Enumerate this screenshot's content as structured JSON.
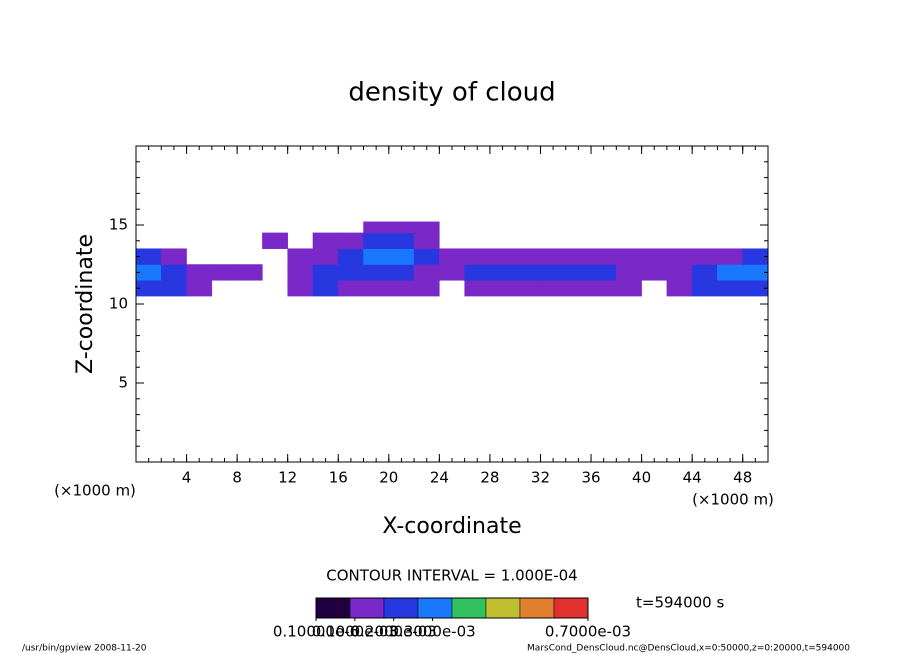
{
  "chart_data": {
    "type": "heatmap",
    "title": "density of cloud",
    "x_label": "X-coordinate",
    "y_label": "Z-coordinate",
    "x_units": [
      "(×1000 m)",
      "(×1000 m)"
    ],
    "contour_interval": "CONTOUR INTERVAL = 1.000E-04",
    "time_label": "t=594000 s",
    "footer_left": "/usr/bin/gpview  2008-11-20",
    "footer_right": "MarsCond_DensCloud.nc@DensCloud,x=0:50000,z=0:20000,t=594000",
    "xlim": [
      0,
      50
    ],
    "ylim": [
      0,
      20
    ],
    "xticks": [
      4,
      8,
      12,
      16,
      20,
      24,
      28,
      32,
      36,
      40,
      44,
      48
    ],
    "yticks": [
      5,
      10,
      15
    ],
    "minor_ticks": true,
    "x_edges": [
      0,
      2,
      4,
      6,
      8,
      10,
      12,
      14,
      16,
      18,
      20,
      22,
      24,
      26,
      28,
      30,
      32,
      34,
      36,
      38,
      40,
      42,
      44,
      46,
      48,
      50
    ],
    "z_edges": [
      10.5,
      11.5,
      12.5,
      13.5,
      14.5,
      15.2
    ],
    "values": [
      [
        0.00025,
        0.0002,
        0.0001,
        null,
        null,
        null,
        0.0001,
        0.0002,
        0.0001,
        0.0001,
        0.0001,
        0.0001,
        null,
        0.0001,
        0.0001,
        0.0001,
        0.0001,
        0.0001,
        0.0001,
        0.0001,
        null,
        0.0001,
        0.0002,
        0.0002,
        0.0002
      ],
      [
        0.0003,
        0.0002,
        0.0001,
        0.0001,
        0.0001,
        null,
        0.0001,
        0.0002,
        0.0002,
        0.0002,
        0.0002,
        0.0001,
        0.0001,
        0.0002,
        0.0002,
        0.0002,
        0.0002,
        0.0002,
        0.0002,
        0.0001,
        0.0001,
        0.0001,
        0.0002,
        0.0003,
        0.0003
      ],
      [
        0.0002,
        0.0001,
        null,
        null,
        null,
        null,
        0.0001,
        0.0001,
        0.0002,
        0.0003,
        0.0003,
        0.0002,
        0.0001,
        0.0001,
        0.0001,
        0.0001,
        0.0001,
        0.0001,
        0.0001,
        0.0001,
        0.0001,
        0.0001,
        0.0001,
        0.0001,
        0.0002
      ],
      [
        null,
        null,
        null,
        null,
        null,
        0.0001,
        null,
        0.0001,
        0.0001,
        0.0002,
        0.0002,
        0.0001,
        null,
        null,
        null,
        null,
        null,
        null,
        null,
        null,
        null,
        null,
        null,
        null,
        null
      ],
      [
        null,
        null,
        null,
        null,
        null,
        null,
        null,
        null,
        null,
        0.0001,
        0.0001,
        0.0001,
        null,
        null,
        null,
        null,
        null,
        null,
        null,
        null,
        null,
        null,
        null,
        null,
        null
      ]
    ],
    "colorbar_lim": [
      0,
      0.0007
    ],
    "colors": [
      "#200040",
      "#7a28c8",
      "#2838e0",
      "#1a78ff",
      "#30c060",
      "#c0c030",
      "#e08030",
      "#e03030"
    ],
    "colorbar_ticks": [
      {
        "value": 1e-07,
        "label": "0.10000e-6"
      },
      {
        "value": 0.0001,
        "label": "0.1000e-03"
      },
      {
        "value": 0.0002,
        "label": "0.2000e-03"
      },
      {
        "value": 0.0003,
        "label": "0.3000e-03"
      },
      {
        "value": 0.0007,
        "label": "0.7000e-03"
      }
    ]
  }
}
